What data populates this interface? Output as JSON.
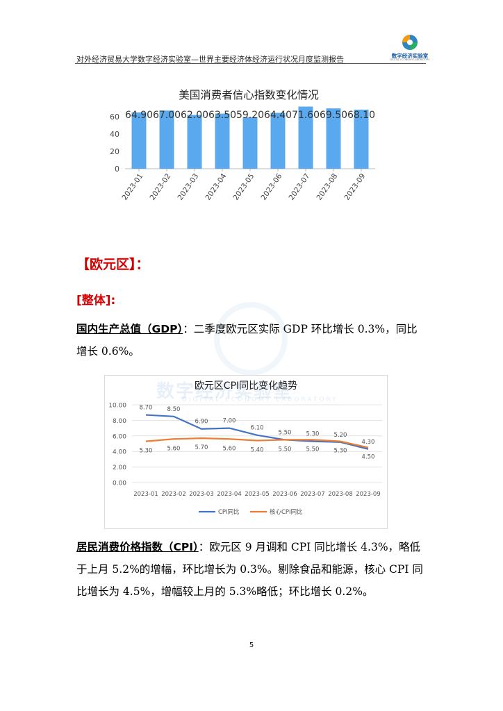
{
  "header": {
    "text": "对外经济贸易大学数字经济实验室—世界主要经济体经济运行状况月度监测报告",
    "logo_text": "数字经济实验室",
    "logo_sub": "DIGITAL ECONOMY LABORATORY"
  },
  "colors": {
    "bar": "#5aa9ef",
    "cpi": "#4472c4",
    "core_cpi": "#ed7d31",
    "heading": "#d40000"
  },
  "us_chart": {
    "chart_data": {
      "type": "bar",
      "title": "美国消费者信心指数变化情况",
      "categories": [
        "2023-01",
        "2023-02",
        "2023-03",
        "2023-04",
        "2023-05",
        "2023-06",
        "2023-07",
        "2023-08",
        "2023-09"
      ],
      "values": [
        64.9,
        67.0,
        62.0,
        63.5,
        59.2,
        64.4,
        71.6,
        69.5,
        68.1
      ],
      "data_labels": [
        "64.90",
        "67.00",
        "62.00",
        "63.50",
        "59.20",
        "64.40",
        "71.60",
        "69.50",
        "68.10"
      ],
      "ylim": [
        0,
        80
      ],
      "yticks": [
        "0",
        "20",
        "40",
        "60"
      ],
      "grid": false
    }
  },
  "euro": {
    "heading": "【欧元区】：",
    "overall": "[整体]:",
    "gdp_term": "国内生产总值（GDP）",
    "gdp_text": "：二季度欧元区实际 GDP 环比增长 0.3%，同比增长 0.6%。",
    "cpi_term": "居民消费价格指数（CPI）",
    "cpi_text": "：欧元区 9 月调和 CPI 同比增长 4.3%，略低于上月 5.2%的增幅，环比增长为 0.3%。剔除食品和能源，核心 CPI 同比增长为 4.5%，增幅较上月的 5.3%略低；环比增长 0.2%。"
  },
  "cpi_chart": {
    "watermark_title": "数字经济实验室",
    "watermark_sub": "DIGITAL ECONOMY LABORATORY",
    "chart_data": {
      "type": "line",
      "title": "欧元区CPI同比变化趋势",
      "x": [
        "2023-01",
        "2023-02",
        "2023-03",
        "2023-04",
        "2023-05",
        "2023-06",
        "2023-07",
        "2023-08",
        "2023-09"
      ],
      "series": [
        {
          "name": "CPI同比",
          "values": [
            8.7,
            8.5,
            6.9,
            7.0,
            6.1,
            5.5,
            5.3,
            5.2,
            4.3
          ],
          "labels": [
            "8.70",
            "8.50",
            "6.90",
            "7.00",
            "6.10",
            "5.50",
            "5.30",
            "5.20",
            "4.30"
          ]
        },
        {
          "name": "核心CPI同比",
          "values": [
            5.3,
            5.6,
            5.7,
            5.6,
            5.4,
            5.5,
            5.5,
            5.3,
            4.5
          ],
          "labels": [
            "5.30",
            "5.60",
            "5.70",
            "5.60",
            "5.40",
            "5.50",
            "5.50",
            "5.30",
            "4.50"
          ]
        }
      ],
      "ylim": [
        0,
        10
      ],
      "yticks": [
        "0.00",
        "2.00",
        "4.00",
        "6.00",
        "8.00",
        "10.00"
      ],
      "grid": true,
      "legend": "bottom"
    }
  },
  "page_number": "5"
}
